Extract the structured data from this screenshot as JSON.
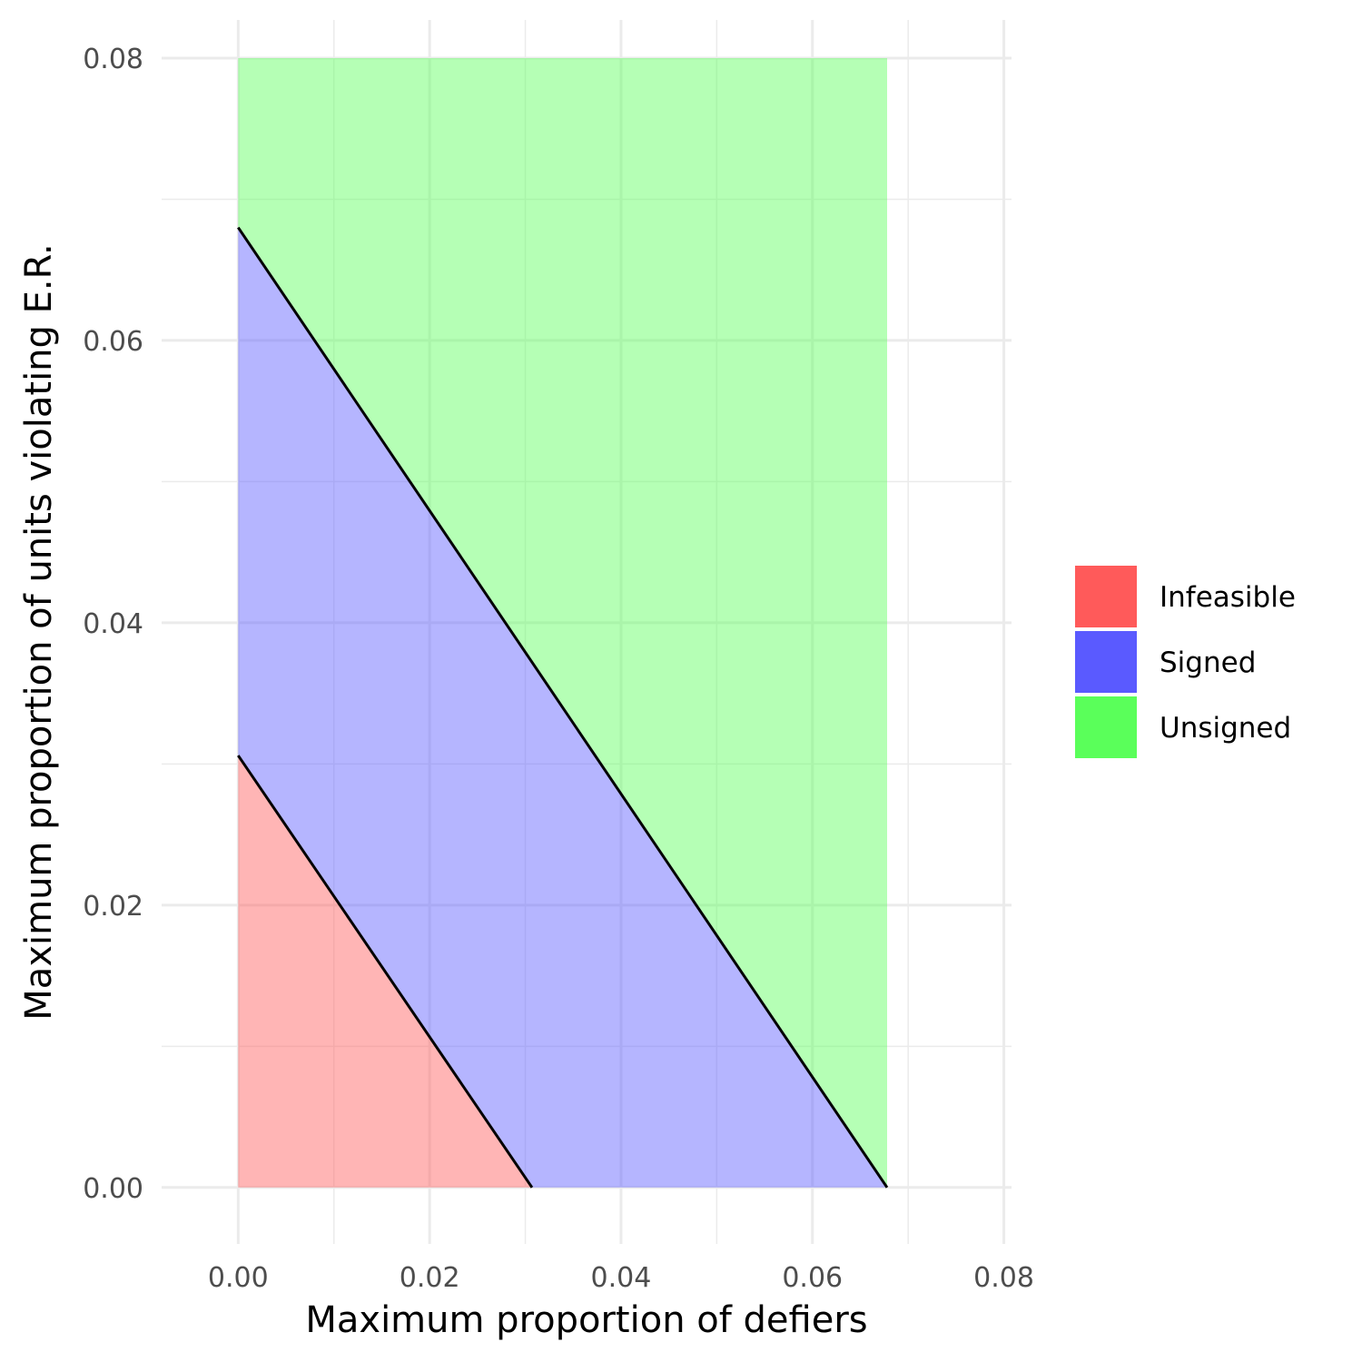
{
  "chart_data": {
    "type": "area",
    "title": "",
    "xlabel": "Maximum proportion of defiers",
    "ylabel": "Maximum proportion of units violating E.R.",
    "xlim": [
      -0.008,
      0.0808
    ],
    "ylim": [
      -0.004,
      0.0827
    ],
    "x_ticks": [
      0.0,
      0.02,
      0.04,
      0.06,
      0.08
    ],
    "x_tick_labels": [
      "0.00",
      "0.02",
      "0.04",
      "0.06",
      "0.08"
    ],
    "y_ticks": [
      0.0,
      0.02,
      0.04,
      0.06,
      0.08
    ],
    "y_tick_labels": [
      "0.00",
      "0.02",
      "0.04",
      "0.06",
      "0.08"
    ],
    "grid": true,
    "legend_position": "right",
    "series": [
      {
        "name": "Infeasible",
        "color": "#FF5A5A",
        "opacity": 0.45,
        "polygon": [
          [
            0.0,
            0.0
          ],
          [
            0.0307,
            0.0
          ],
          [
            0.0,
            0.0306
          ]
        ]
      },
      {
        "name": "Signed",
        "color": "#5A5AFF",
        "opacity": 0.45,
        "polygon": [
          [
            0.0307,
            0.0
          ],
          [
            0.0678,
            0.0
          ],
          [
            0.0,
            0.068
          ],
          [
            0.0,
            0.0306
          ]
        ]
      },
      {
        "name": "Unsigned",
        "color": "#5AFF5A",
        "opacity": 0.45,
        "polygon": [
          [
            0.0,
            0.068
          ],
          [
            0.0678,
            0.0
          ],
          [
            0.0678,
            0.08
          ],
          [
            0.0,
            0.08
          ]
        ]
      }
    ],
    "boundary_lines": [
      {
        "x": [
          0.0,
          0.0307
        ],
        "y": [
          0.0306,
          0.0
        ]
      },
      {
        "x": [
          0.0,
          0.0678
        ],
        "y": [
          0.068,
          0.0
        ]
      }
    ]
  }
}
